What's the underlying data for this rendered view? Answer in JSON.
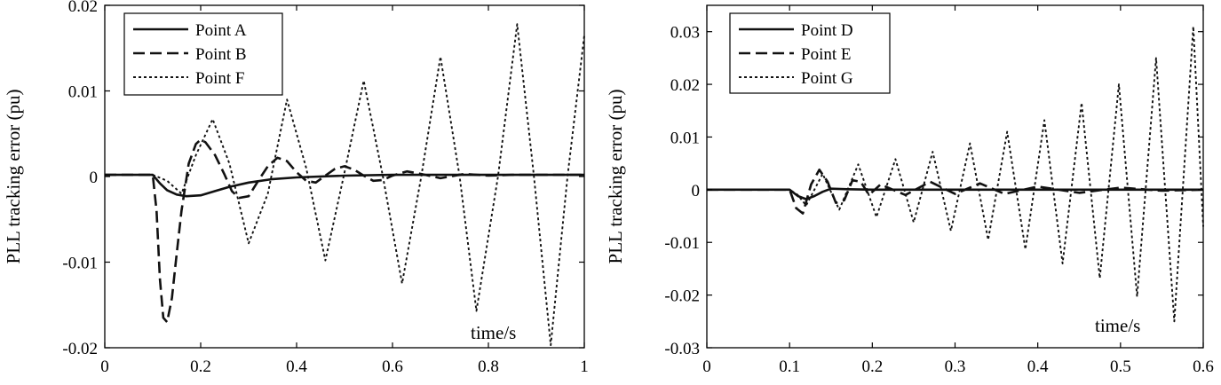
{
  "chart_data": [
    {
      "type": "line",
      "ylabel": "PLL tracking error (pu)",
      "xlabel": "time/s",
      "xlim": [
        0,
        1
      ],
      "ylim": [
        -0.02,
        0.02
      ],
      "xticks": [
        "0",
        "0.2",
        "0.4",
        "0.6",
        "0.8",
        "1"
      ],
      "yticks": [
        "-0.02",
        "-0.01",
        "0",
        "0.01",
        "0.02"
      ],
      "grid": false,
      "legend_position": "top-left",
      "series": [
        {
          "name": "Point A",
          "style": "solid",
          "x": [
            0,
            0.1,
            0.115,
            0.13,
            0.15,
            0.17,
            0.2,
            0.23,
            0.26,
            0.3,
            0.35,
            0.4,
            0.5,
            0.6,
            0.7,
            0.8,
            1.0
          ],
          "y": [
            0.0002,
            0.0002,
            -0.0008,
            -0.0016,
            -0.0021,
            -0.0023,
            -0.0022,
            -0.0017,
            -0.0012,
            -0.0007,
            -0.0003,
            -0.0001,
            0.0001,
            0.0002,
            0.0002,
            0.0002,
            0.0002
          ]
        },
        {
          "name": "Point B",
          "style": "dashed",
          "x": [
            0,
            0.1,
            0.108,
            0.115,
            0.122,
            0.13,
            0.14,
            0.15,
            0.16,
            0.175,
            0.19,
            0.2,
            0.21,
            0.23,
            0.25,
            0.265,
            0.28,
            0.3,
            0.32,
            0.34,
            0.36,
            0.38,
            0.4,
            0.42,
            0.44,
            0.46,
            0.48,
            0.5,
            0.52,
            0.54,
            0.56,
            0.58,
            0.6,
            0.63,
            0.66,
            0.7,
            0.75,
            0.8,
            0.85,
            0.9,
            1.0
          ],
          "y": [
            0.0002,
            0.0002,
            -0.004,
            -0.012,
            -0.0165,
            -0.017,
            -0.0142,
            -0.009,
            -0.004,
            0.0015,
            0.0038,
            0.0043,
            0.004,
            0.0025,
            0.0002,
            -0.0017,
            -0.0025,
            -0.0023,
            -0.0005,
            0.0012,
            0.0022,
            0.0018,
            0.0005,
            -0.0005,
            -0.0007,
            0.0001,
            0.0009,
            0.0012,
            0.0008,
            0.0001,
            -0.0005,
            -0.0004,
            0.0001,
            0.0006,
            0.0003,
            -0.0002,
            0.0003,
            0.0001,
            0.0002,
            0.0002,
            0.0002
          ]
        },
        {
          "name": "Point F",
          "style": "dotted",
          "x": [
            0,
            0.1,
            0.13,
            0.16,
            0.19,
            0.225,
            0.26,
            0.3,
            0.34,
            0.38,
            0.42,
            0.46,
            0.5,
            0.54,
            0.58,
            0.62,
            0.66,
            0.7,
            0.74,
            0.775,
            0.82,
            0.86,
            0.895,
            0.93,
            0.965,
            1.0
          ],
          "y": [
            0.0002,
            0.0002,
            -0.0005,
            -0.002,
            0.0025,
            0.0067,
            0.0015,
            -0.0078,
            -0.002,
            0.009,
            0.001,
            -0.0098,
            0.0005,
            0.0112,
            0.0,
            -0.0125,
            0.0,
            0.014,
            0.0,
            -0.0157,
            0.0,
            0.0178,
            0.0,
            -0.0197,
            0.0,
            0.0165
          ]
        }
      ]
    },
    {
      "type": "line",
      "ylabel": "PLL tracking error (pu)",
      "xlabel": "time/s",
      "xlim": [
        0,
        0.6
      ],
      "ylim": [
        -0.03,
        0.035
      ],
      "xticks": [
        "0",
        "0.1",
        "0.2",
        "0.3",
        "0.4",
        "0.5",
        "0.6"
      ],
      "yticks": [
        "-0.03",
        "-0.02",
        "-0.01",
        "0",
        "0.01",
        "0.02",
        "0.03"
      ],
      "grid": false,
      "legend_position": "top-left",
      "series": [
        {
          "name": "Point D",
          "style": "solid",
          "x": [
            0,
            0.1,
            0.11,
            0.12,
            0.13,
            0.14,
            0.15,
            0.17,
            0.2,
            0.6
          ],
          "y": [
            0,
            0,
            -0.0012,
            -0.0018,
            -0.0012,
            -0.0004,
            0.0002,
            0.0001,
            0,
            0
          ]
        },
        {
          "name": "Point E",
          "style": "dashed",
          "x": [
            0,
            0.1,
            0.108,
            0.116,
            0.126,
            0.136,
            0.146,
            0.156,
            0.166,
            0.176,
            0.186,
            0.196,
            0.21,
            0.24,
            0.27,
            0.3,
            0.33,
            0.36,
            0.4,
            0.45,
            0.5,
            0.55,
            0.6
          ],
          "y": [
            0,
            0,
            -0.0035,
            -0.0045,
            0.001,
            0.0038,
            0.0015,
            -0.0025,
            -0.002,
            0.0018,
            0.0015,
            -0.001,
            0.001,
            -0.001,
            0.0015,
            -0.0008,
            0.0012,
            -0.0008,
            0.0006,
            -0.0006,
            0.0004,
            -0.0002,
            0
          ]
        },
        {
          "name": "Point G",
          "style": "dotted",
          "x": [
            0,
            0.1,
            0.11,
            0.12,
            0.14,
            0.16,
            0.183,
            0.205,
            0.228,
            0.25,
            0.273,
            0.295,
            0.318,
            0.34,
            0.363,
            0.385,
            0.408,
            0.43,
            0.453,
            0.475,
            0.498,
            0.52,
            0.543,
            0.565,
            0.588,
            0.6
          ],
          "y": [
            0,
            0,
            -0.001,
            -0.003,
            0.003,
            -0.0038,
            0.0048,
            -0.0052,
            0.0058,
            -0.0062,
            0.0072,
            -0.0078,
            0.0088,
            -0.0095,
            0.011,
            -0.0113,
            0.0132,
            -0.014,
            0.0165,
            -0.0168,
            0.02,
            -0.0203,
            0.025,
            -0.025,
            0.031,
            -0.007
          ]
        }
      ]
    }
  ]
}
